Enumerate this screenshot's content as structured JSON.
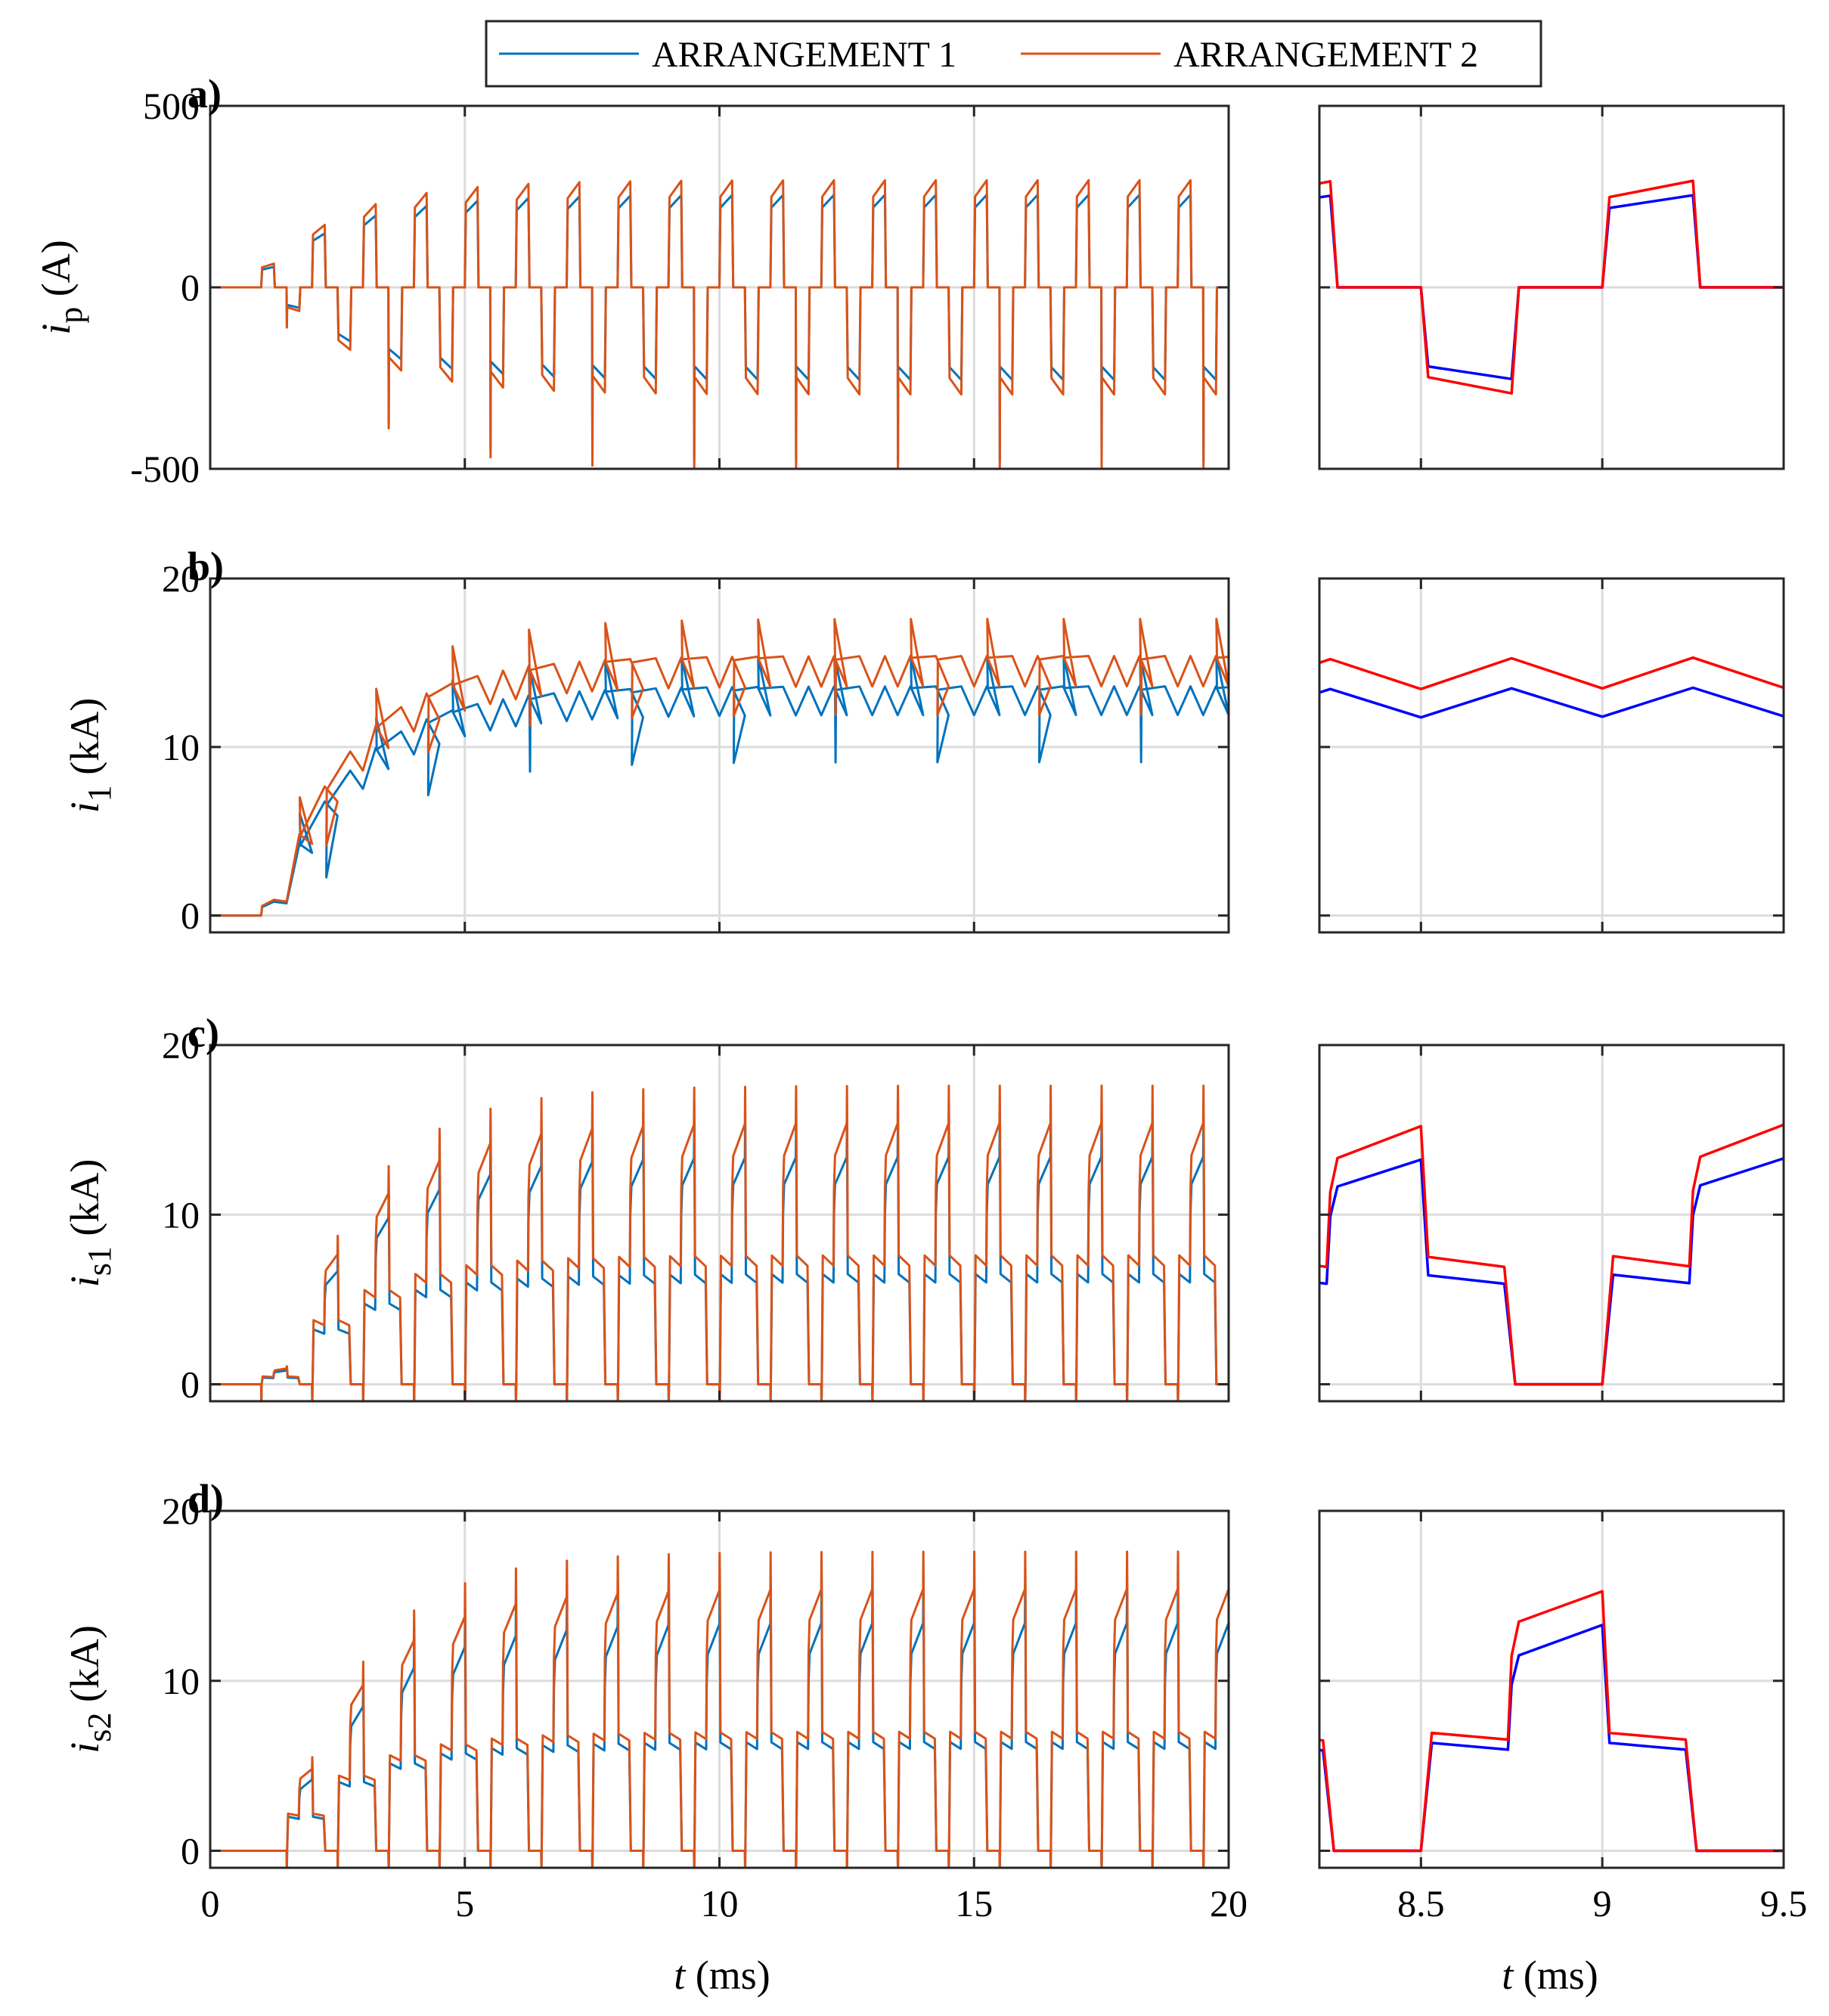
{
  "legend": {
    "items": [
      {
        "label": "ARRANGEMENT 1",
        "color": "#0072BD"
      },
      {
        "label": "ARRANGEMENT 2",
        "color": "#D95319"
      }
    ]
  },
  "colors": {
    "arr1_main": "#0072BD",
    "arr2_main": "#D95319",
    "arr1_zoom": "#0000FF",
    "arr2_zoom": "#FF0000",
    "grid": "#DCDCDC",
    "axis": "#262626"
  },
  "xlabel": {
    "italic": "t",
    "rest": " (ms)"
  },
  "chart_data": [
    {
      "panel": "a)",
      "type": "line",
      "ylabel_var": "i",
      "ylabel_sub": "p",
      "ylabel_unit": "(A)",
      "x_main": [
        0,
        20
      ],
      "x_zoom": [
        8.22,
        9.5
      ],
      "ylim": [
        -500,
        500
      ],
      "yticks": [
        -500,
        0,
        500
      ],
      "ytick_labels": [
        "-500",
        "0",
        "500"
      ],
      "xticks_main": [
        0,
        5,
        10,
        15,
        20
      ],
      "xticks_zoom": [
        8.5,
        9,
        9.5
      ],
      "period": 1.0,
      "t_start": 1.0,
      "series": [
        {
          "name": "ARRANGEMENT 1",
          "steady_pos": [
            220,
            255
          ],
          "steady_neg": [
            -220,
            -255
          ],
          "spike": -480
        },
        {
          "name": "ARRANGEMENT 2",
          "steady_pos": [
            250,
            295
          ],
          "steady_neg": [
            -250,
            -295
          ],
          "spike": -500
        }
      ]
    },
    {
      "panel": "b)",
      "type": "line",
      "ylabel_var": "i",
      "ylabel_sub": "1",
      "ylabel_unit": "(kA)",
      "x_main": [
        0,
        20
      ],
      "x_zoom": [
        8.22,
        9.5
      ],
      "ylim": [
        -1,
        20
      ],
      "yticks": [
        0,
        10,
        20
      ],
      "ytick_labels": [
        "0",
        "10",
        "20"
      ],
      "xticks_main": [
        0,
        5,
        10,
        15,
        20
      ],
      "xticks_zoom": [
        8.5,
        9,
        9.5
      ],
      "period": 0.5,
      "t_start": 1.0,
      "series": [
        {
          "name": "ARRANGEMENT 1",
          "steady_low": 11.9,
          "steady_high": 13.6
        },
        {
          "name": "ARRANGEMENT 2",
          "steady_low": 13.6,
          "steady_high": 15.4
        }
      ]
    },
    {
      "panel": "c)",
      "type": "line",
      "ylabel_var": "i",
      "ylabel_sub": "s1",
      "ylabel_unit": "(kA)",
      "x_main": [
        0,
        20
      ],
      "x_zoom": [
        8.22,
        9.5
      ],
      "ylim": [
        -1,
        20
      ],
      "yticks": [
        0,
        10,
        20
      ],
      "ytick_labels": [
        "0",
        "10",
        "20"
      ],
      "xticks_main": [
        0,
        5,
        10,
        15,
        20
      ],
      "xticks_zoom": [
        8.5,
        9,
        9.5
      ],
      "period": 1.0,
      "t_start": 1.0,
      "series": [
        {
          "name": "ARRANGEMENT 1",
          "level_mid": [
            6.5,
            6.0
          ],
          "level_high": [
            11.8,
            13.4
          ]
        },
        {
          "name": "ARRANGEMENT 2",
          "level_mid": [
            7.6,
            7.0
          ],
          "level_high": [
            13.5,
            15.4
          ]
        }
      ]
    },
    {
      "panel": "d)",
      "type": "line",
      "ylabel_var": "i",
      "ylabel_sub": "s2",
      "ylabel_unit": "(kA)",
      "x_main": [
        0,
        20
      ],
      "x_zoom": [
        8.22,
        9.5
      ],
      "ylim": [
        -1,
        20
      ],
      "yticks": [
        0,
        10,
        20
      ],
      "ytick_labels": [
        "0",
        "10",
        "20"
      ],
      "xticks_main": [
        0,
        5,
        10,
        15,
        20
      ],
      "xticks_zoom": [
        8.5,
        9,
        9.5
      ],
      "period": 1.0,
      "t_start": 1.0,
      "series": [
        {
          "name": "ARRANGEMENT 1",
          "level_mid": [
            6.4,
            6.0
          ],
          "level_high": [
            11.6,
            13.4
          ]
        },
        {
          "name": "ARRANGEMENT 2",
          "level_mid": [
            7.0,
            6.6
          ],
          "level_high": [
            13.6,
            15.4
          ]
        }
      ]
    }
  ]
}
